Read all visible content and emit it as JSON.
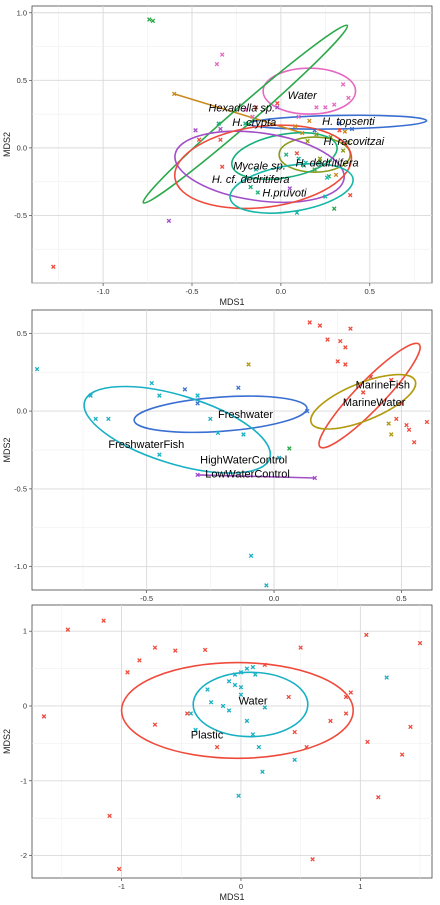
{
  "chart_data": [
    {
      "type": "scatter",
      "xlabel": "MDS1",
      "ylabel": "MDS2",
      "xlim": [
        -1.4,
        0.85
      ],
      "ylim": [
        -1.0,
        1.05
      ],
      "xticks": [
        "-1.0",
        "-0.5",
        "0.0",
        "0.5"
      ],
      "yticks": [
        "-0.5",
        "0.0",
        "0.5",
        "1.0"
      ],
      "xtick_values": [
        -1.0,
        -0.5,
        0.0,
        0.5
      ],
      "ytick_values": [
        -0.5,
        0.0,
        0.5,
        1.0
      ],
      "grid": true,
      "italic_labels": true,
      "series": [
        {
          "name": "Water",
          "color": "#e667c0",
          "points": [
            [
              -0.33,
              0.69
            ],
            [
              -0.16,
              0.23
            ],
            [
              -0.2,
              0.28
            ],
            [
              -0.36,
              0.62
            ],
            [
              0.35,
              0.47
            ],
            [
              0.38,
              0.37
            ],
            [
              0.1,
              0.23
            ],
            [
              0.2,
              0.3
            ],
            [
              0.25,
              0.3
            ],
            [
              0.3,
              0.32
            ]
          ],
          "ellipse": {
            "cx": 0.16,
            "cy": 0.42,
            "rx": 0.26,
            "ry": 0.17,
            "angle": 0
          },
          "label": {
            "x": 0.12,
            "y": 0.39,
            "align": "middle"
          }
        },
        {
          "name": "H. topsenti",
          "color": "#3a6fd1",
          "points": [
            [
              0.33,
              0.18
            ],
            [
              0.4,
              0.14
            ],
            [
              0.19,
              0.13
            ]
          ],
          "ellipse": {
            "cx": 0.32,
            "cy": 0.19,
            "rx": 0.5,
            "ry": 0.05,
            "angle": -1
          },
          "label": {
            "x": 0.38,
            "y": 0.2,
            "align": "middle"
          }
        },
        {
          "name": "Hexadella sp.",
          "color": "#c98a1a",
          "points": [
            [
              -0.6,
              0.4
            ],
            [
              0.12,
              0.11
            ],
            [
              0.16,
              0.2
            ],
            [
              0.08,
              0.16
            ],
            [
              0.36,
              0.12
            ],
            [
              0.31,
              -0.2
            ]
          ],
          "segment": [
            [
              -0.6,
              0.4
            ],
            [
              0.12,
              0.11
            ]
          ],
          "label": {
            "x": -0.22,
            "y": 0.3,
            "align": "middle"
          }
        },
        {
          "name": "H. crypta",
          "color": "#2aa84a",
          "points": [
            [
              -0.74,
              0.95
            ],
            [
              -0.72,
              0.94
            ],
            [
              0.3,
              -0.45
            ],
            [
              0.19,
              -0.16
            ],
            [
              0.22,
              -0.1
            ],
            [
              0.27,
              -0.21
            ]
          ],
          "ellipse": {
            "cx": -0.2,
            "cy": 0.25,
            "rx": 0.76,
            "ry": 0.07,
            "angle": -41
          },
          "label": {
            "x": -0.15,
            "y": 0.19,
            "align": "middle"
          }
        },
        {
          "name": "H. racovitzai",
          "color": "#8a9a1a",
          "points": [
            [
              0.2,
              0.1
            ],
            [
              0.28,
              0.08
            ],
            [
              0.35,
              -0.02
            ],
            [
              0.15,
              0.05
            ],
            [
              0.22,
              -0.08
            ],
            [
              0.38,
              0.04
            ]
          ],
          "ellipse": {
            "cx": 0.19,
            "cy": -0.05,
            "rx": 0.2,
            "ry": 0.13,
            "angle": 0
          },
          "label": {
            "x": 0.41,
            "y": 0.05,
            "align": "middle"
          }
        },
        {
          "name": "H. dedritifera",
          "color": "#18b07a",
          "points": [
            [
              -0.35,
              0.18
            ],
            [
              -0.2,
              0.18
            ],
            [
              0.03,
              -0.05
            ],
            [
              0.13,
              -0.13
            ],
            [
              -0.17,
              -0.29
            ],
            [
              -0.13,
              -0.33
            ]
          ],
          "ellipse": {
            "cx": 0.02,
            "cy": -0.06,
            "rx": 0.3,
            "ry": 0.16,
            "angle": -10
          },
          "label": {
            "x": 0.26,
            "y": -0.11,
            "align": "middle"
          }
        },
        {
          "name": "Mycale sp.",
          "color": "#a14ec9",
          "points": [
            [
              -0.48,
              0.13
            ],
            [
              -0.34,
              0.14
            ],
            [
              -0.63,
              -0.54
            ],
            [
              -0.02,
              0.3
            ],
            [
              0.05,
              -0.3
            ]
          ],
          "ellipse": {
            "cx": -0.12,
            "cy": -0.14,
            "rx": 0.48,
            "ry": 0.25,
            "angle": 8
          },
          "label": {
            "x": -0.12,
            "y": -0.13,
            "align": "middle"
          }
        },
        {
          "name": "H. cf. dedritifera",
          "color": "#ef4b3c",
          "points": [
            [
              -1.28,
              -0.88
            ],
            [
              -0.14,
              0.3
            ],
            [
              0.39,
              -0.35
            ],
            [
              -0.34,
              0.06
            ],
            [
              -0.46,
              0.06
            ],
            [
              -0.33,
              -0.14
            ],
            [
              -0.02,
              0.33
            ],
            [
              0.09,
              -0.04
            ],
            [
              0.33,
              0.13
            ]
          ],
          "ellipse": {
            "cx": -0.1,
            "cy": -0.14,
            "rx": 0.5,
            "ry": 0.3,
            "angle": -7
          },
          "label": {
            "x": -0.17,
            "y": -0.23,
            "align": "middle"
          }
        },
        {
          "name": "H.pruvoti",
          "color": "#16b6a8",
          "points": [
            [
              -0.14,
              -0.16
            ],
            [
              0.25,
              -0.36
            ],
            [
              0.09,
              -0.48
            ],
            [
              0.14,
              -0.11
            ],
            [
              0.26,
              -0.22
            ],
            [
              0.1,
              -0.08
            ]
          ],
          "ellipse": {
            "cx": 0.06,
            "cy": -0.3,
            "rx": 0.35,
            "ry": 0.17,
            "angle": -9
          },
          "label": {
            "x": 0.02,
            "y": -0.33,
            "align": "middle"
          }
        }
      ]
    },
    {
      "type": "scatter",
      "xlabel": "MDS1",
      "ylabel": "MDS2",
      "xlim": [
        -0.95,
        0.62
      ],
      "ylim": [
        -1.15,
        0.65
      ],
      "xticks": [
        "-0.5",
        "0.0",
        "0.5"
      ],
      "yticks": [
        "-1.0",
        "-0.5",
        "0.0",
        "0.5"
      ],
      "xtick_values": [
        -0.5,
        0.0,
        0.5
      ],
      "ytick_values": [
        -1.0,
        -0.5,
        0.0,
        0.5
      ],
      "grid": true,
      "italic_labels": false,
      "series": [
        {
          "name": "MarineFish",
          "color": "#ef4b3c",
          "points": [
            [
              0.14,
              0.57
            ],
            [
              0.18,
              0.55
            ],
            [
              0.3,
              0.53
            ],
            [
              0.21,
              0.46
            ],
            [
              0.26,
              0.45
            ],
            [
              0.28,
              0.41
            ],
            [
              0.25,
              0.32
            ],
            [
              0.28,
              0.3
            ],
            [
              0.38,
              0.22
            ],
            [
              0.46,
              0.2
            ],
            [
              0.35,
              0.12
            ],
            [
              0.5,
              0.05
            ],
            [
              0.48,
              -0.05
            ],
            [
              0.52,
              -0.09
            ],
            [
              0.6,
              -0.07
            ],
            [
              0.53,
              -0.12
            ],
            [
              0.55,
              -0.2
            ]
          ],
          "ellipse": {
            "cx": 0.375,
            "cy": 0.1,
            "rx": 0.28,
            "ry": 0.09,
            "angle": -46
          },
          "label": {
            "x": 0.32,
            "y": 0.17,
            "align": "start"
          }
        },
        {
          "name": "MarineWater",
          "color": "#b39a0d",
          "points": [
            [
              -0.1,
              0.3
            ],
            [
              0.45,
              -0.08
            ],
            [
              0.46,
              -0.15
            ]
          ],
          "ellipse": {
            "cx": 0.35,
            "cy": 0.06,
            "rx": 0.22,
            "ry": 0.12,
            "angle": -22
          },
          "label": {
            "x": 0.27,
            "y": 0.06,
            "align": "start"
          }
        },
        {
          "name": "Freshwater",
          "color": "#3a6fd1",
          "points": [
            [
              -0.14,
              0.15
            ],
            [
              -0.3,
              0.05
            ],
            [
              0.13,
              0.0
            ],
            [
              -0.35,
              0.14
            ]
          ],
          "ellipse": {
            "cx": -0.21,
            "cy": -0.02,
            "rx": 0.34,
            "ry": 0.11,
            "angle": -4
          },
          "label": {
            "x": -0.22,
            "y": -0.02,
            "align": "start"
          }
        },
        {
          "name": "FreshwaterFish",
          "color": "#18b0c4",
          "points": [
            [
              -0.93,
              0.27
            ],
            [
              -0.72,
              0.1
            ],
            [
              -0.7,
              -0.05
            ],
            [
              -0.65,
              -0.05
            ],
            [
              -0.48,
              0.18
            ],
            [
              -0.45,
              0.1
            ],
            [
              -0.3,
              0.1
            ],
            [
              -0.25,
              -0.05
            ],
            [
              -0.45,
              -0.28
            ],
            [
              -0.22,
              -0.14
            ],
            [
              -0.12,
              -0.15
            ],
            [
              -0.09,
              -0.93
            ],
            [
              -0.03,
              -1.12
            ],
            [
              0.02,
              -0.3
            ]
          ],
          "ellipse": {
            "cx": -0.38,
            "cy": -0.12,
            "rx": 0.38,
            "ry": 0.22,
            "angle": 17
          },
          "label": {
            "x": -0.65,
            "y": -0.21,
            "align": "start"
          }
        },
        {
          "name": "HighWaterControl",
          "color": "#2aa84a",
          "points": [
            [
              0.06,
              -0.24
            ]
          ],
          "label": {
            "x": -0.29,
            "y": -0.31,
            "align": "start"
          }
        },
        {
          "name": "LowWaterControl",
          "color": "#a14ec9",
          "points": [
            [
              -0.3,
              -0.41
            ],
            [
              0.16,
              -0.43
            ]
          ],
          "segment": [
            [
              -0.3,
              -0.41
            ],
            [
              0.16,
              -0.43
            ]
          ],
          "label": {
            "x": -0.27,
            "y": -0.4,
            "align": "start"
          }
        }
      ]
    },
    {
      "type": "scatter",
      "xlabel": "MDS1",
      "ylabel": "MDS2",
      "xlim": [
        -1.75,
        1.6
      ],
      "ylim": [
        -2.3,
        1.35
      ],
      "xticks": [
        "-1",
        "0",
        "1"
      ],
      "yticks": [
        "-2",
        "-1",
        "0",
        "1"
      ],
      "xtick_values": [
        -1,
        0,
        1
      ],
      "ytick_values": [
        -2,
        -1,
        0,
        1
      ],
      "grid": true,
      "italic_labels": false,
      "series": [
        {
          "name": "Plastic",
          "color": "#ef4b3c",
          "points": [
            [
              -1.45,
              1.02
            ],
            [
              -1.15,
              1.14
            ],
            [
              -0.72,
              0.78
            ],
            [
              -0.55,
              0.74
            ],
            [
              -0.85,
              0.61
            ],
            [
              -0.95,
              0.45
            ],
            [
              -0.3,
              0.75
            ],
            [
              0.5,
              0.78
            ],
            [
              1.05,
              0.95
            ],
            [
              1.5,
              0.84
            ],
            [
              -1.65,
              -0.14
            ],
            [
              -1.1,
              -1.47
            ],
            [
              -1.02,
              -2.18
            ],
            [
              -0.72,
              -0.25
            ],
            [
              -0.45,
              -0.1
            ],
            [
              -0.2,
              -0.55
            ],
            [
              0.55,
              -0.55
            ],
            [
              0.92,
              0.18
            ],
            [
              0.88,
              0.12
            ],
            [
              0.88,
              -0.1
            ],
            [
              1.06,
              -0.48
            ],
            [
              1.42,
              -0.28
            ],
            [
              1.35,
              -0.65
            ],
            [
              1.15,
              -1.22
            ],
            [
              0.6,
              -2.05
            ],
            [
              0.2,
              0.55
            ],
            [
              0.4,
              0.12
            ],
            [
              0.75,
              -0.2
            ],
            [
              0.45,
              -0.35
            ]
          ],
          "ellipse": {
            "cx": -0.03,
            "cy": -0.06,
            "rx": 0.97,
            "ry": 0.64,
            "angle": 0
          },
          "label": {
            "x": -0.42,
            "y": -0.38,
            "align": "start"
          }
        },
        {
          "name": "Water",
          "color": "#18b0c4",
          "points": [
            [
              -0.38,
              -0.32
            ],
            [
              -0.42,
              -0.1
            ],
            [
              -0.28,
              0.22
            ],
            [
              -0.25,
              0.05
            ],
            [
              -0.1,
              0.33
            ],
            [
              -0.05,
              0.42
            ],
            [
              0.0,
              0.45
            ],
            [
              0.05,
              0.5
            ],
            [
              0.1,
              0.52
            ],
            [
              0.12,
              0.42
            ],
            [
              -0.05,
              0.28
            ],
            [
              0.0,
              0.25
            ],
            [
              -0.1,
              -0.06
            ],
            [
              0.05,
              -0.2
            ],
            [
              0.1,
              -0.38
            ],
            [
              0.15,
              -0.55
            ],
            [
              0.18,
              -0.88
            ],
            [
              -0.02,
              -1.2
            ],
            [
              0.45,
              -0.72
            ],
            [
              1.22,
              0.38
            ],
            [
              -0.15,
              0.0
            ],
            [
              0.0,
              0.15
            ],
            [
              0.2,
              -0.02
            ]
          ],
          "ellipse": {
            "cx": 0.08,
            "cy": 0.02,
            "rx": 0.48,
            "ry": 0.43,
            "angle": 0
          },
          "label": {
            "x": -0.02,
            "y": 0.07,
            "align": "start"
          }
        }
      ]
    }
  ]
}
